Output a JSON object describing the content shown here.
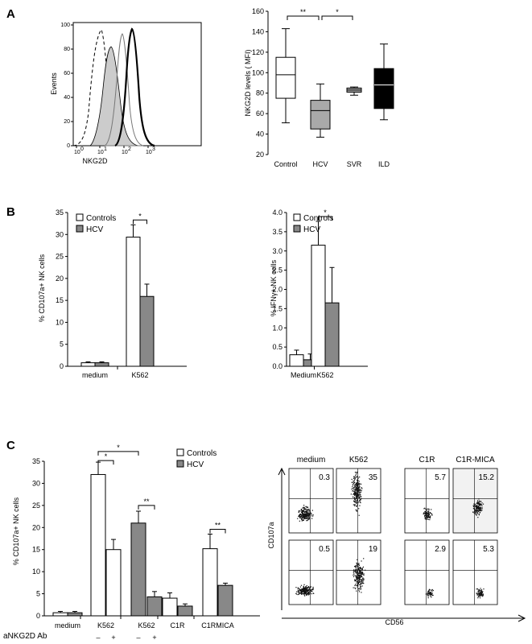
{
  "panels": {
    "A": "A",
    "B": "B",
    "C": "C"
  },
  "panelA_hist": {
    "ylabel": "Events",
    "xlabel": "NKG2D",
    "yticks": [
      "0",
      "20",
      "40",
      "60",
      "80",
      "100"
    ],
    "xticks": [
      "10",
      "10",
      "10",
      "10"
    ],
    "xexps": [
      "0",
      "1",
      "2",
      "3"
    ]
  },
  "colors": {
    "controls": "#ffffff",
    "hcv": "#888888",
    "svr": "#a6a6a6",
    "ild": "#000000",
    "histShade": "#cccccc"
  },
  "chart_data": [
    {
      "type": "box",
      "id": "A2",
      "ylabel": "NKG2D levels ( MFI)",
      "ylim": [
        20,
        160
      ],
      "yticks": [
        20,
        40,
        60,
        80,
        100,
        120,
        140,
        160
      ],
      "categories": [
        "Control",
        "HCV",
        "SVR",
        "ILD"
      ],
      "boxes": [
        {
          "min": 51,
          "q1": 75,
          "median": 98,
          "q3": 115,
          "max": 143
        },
        {
          "min": 37,
          "q1": 45,
          "median": 63,
          "q3": 73,
          "max": 89
        },
        {
          "min": 78,
          "q1": 81,
          "median": 83,
          "q3": 85,
          "max": 86
        },
        {
          "min": 54,
          "q1": 65,
          "median": 88,
          "q3": 104,
          "max": 128
        }
      ],
      "sig": [
        {
          "from": 0,
          "to": 1,
          "label": "**"
        },
        {
          "from": 1,
          "to": 2,
          "label": "*"
        }
      ]
    },
    {
      "type": "bar",
      "id": "B1",
      "ylabel": "% CD107a+ NK cells",
      "ylim": [
        0,
        35
      ],
      "yticks": [
        0,
        5,
        10,
        15,
        20,
        25,
        30,
        35
      ],
      "categories": [
        "medium",
        "K562"
      ],
      "series": [
        {
          "name": "Controls",
          "values": [
            0.8,
            29.4
          ],
          "errors": [
            0.2,
            2.8
          ]
        },
        {
          "name": "HCV",
          "values": [
            0.8,
            15.9
          ],
          "errors": [
            0.2,
            2.8
          ]
        }
      ],
      "sig": [
        {
          "group": 1,
          "label": "*"
        }
      ]
    },
    {
      "type": "bar",
      "id": "B2",
      "ylabel": "% IFNγ+ NK cells",
      "ylim": [
        0,
        4
      ],
      "yticks": [
        "0.0",
        "0.5",
        "1.0",
        "1.5",
        "2.0",
        "2.5",
        "3.0",
        "3.5",
        "4.0"
      ],
      "categories": [
        "Medium",
        "K562"
      ],
      "series": [
        {
          "name": "Controls",
          "values": [
            0.3,
            3.15
          ],
          "errors": [
            0.12,
            0.62
          ]
        },
        {
          "name": "HCV",
          "values": [
            0.17,
            1.65
          ],
          "errors": [
            0.15,
            0.92
          ]
        }
      ],
      "sig": [
        {
          "group": 1,
          "label": "*"
        }
      ]
    },
    {
      "type": "bar",
      "id": "C1",
      "ylabel": "% CD107a+ NK cells",
      "ylim": [
        0,
        35
      ],
      "yticks": [
        0,
        5,
        10,
        15,
        20,
        25,
        30,
        35
      ],
      "categories": [
        "medium",
        "K562",
        "K562",
        "C1R",
        "C1RMICA"
      ],
      "ab_label": "aNKG2D Ab",
      "ab_marks": [
        "–",
        "+",
        "–",
        "+"
      ],
      "series": [
        {
          "name": "Controls",
          "values": [
            0.7,
            32.0,
            21.0,
            4.0,
            15.2
          ]
        },
        {
          "name": "HCV",
          "values": [
            0.7,
            15.0,
            4.3,
            2.2,
            6.9
          ]
        }
      ],
      "bars": [
        {
          "v": 0.7,
          "e": 0.3,
          "fill": "w"
        },
        {
          "v": 0.7,
          "e": 0.3,
          "fill": "g"
        },
        {
          "v": 32.0,
          "e": 2.8,
          "fill": "w"
        },
        {
          "v": 15.0,
          "e": 2.3,
          "fill": "w"
        },
        {
          "v": 21.0,
          "e": 2.7,
          "fill": "g"
        },
        {
          "v": 4.3,
          "e": 1.2,
          "fill": "g"
        },
        {
          "v": 4.0,
          "e": 1.2,
          "fill": "w"
        },
        {
          "v": 2.2,
          "e": 0.5,
          "fill": "g"
        },
        {
          "v": 15.2,
          "e": 3.3,
          "fill": "w"
        },
        {
          "v": 6.9,
          "e": 0.5,
          "fill": "g"
        }
      ],
      "sig": [
        "*",
        "*",
        "**",
        "**"
      ]
    }
  ],
  "legend": {
    "controls": "Controls",
    "hcv": "HCV"
  },
  "flow": {
    "columns": [
      "medium",
      "K562",
      "C1R",
      "C1R-MICA"
    ],
    "top_values": [
      "0.3",
      "35",
      "5.7",
      "15.2"
    ],
    "bottom_values": [
      "0.5",
      "19",
      "2.9",
      "5.3"
    ],
    "ylabel": "CD107a",
    "xlabel": "CD56"
  }
}
